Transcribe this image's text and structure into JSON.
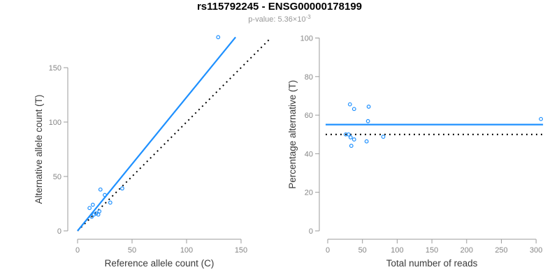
{
  "header": {
    "title": "rs115792245 - ENSG00000178199",
    "subtitle_prefix": "p-value: ",
    "subtitle_value": "5.36×10",
    "subtitle_exponent": "-3"
  },
  "colors": {
    "blue": "#1E90FF",
    "dotted": "#000000",
    "axis": "#9b9b9b",
    "tick_label": "#868686",
    "axis_title": "#3a3a3a",
    "title": "#000000",
    "subtitle": "#979797"
  },
  "chart_data": [
    {
      "id": "ref-vs-alt",
      "type": "scatter",
      "xlabel": "Reference allele count (C)",
      "ylabel": "Alternative allele count (T)",
      "xticks": [
        0,
        50,
        100,
        150
      ],
      "yticks": [
        0,
        50,
        100,
        150
      ],
      "xlim": [
        0,
        176
      ],
      "ylim": [
        0,
        178
      ],
      "points": [
        [
          11,
          21
        ],
        [
          14,
          24
        ],
        [
          21,
          38
        ],
        [
          25,
          33
        ],
        [
          13,
          13
        ],
        [
          15,
          15
        ],
        [
          17,
          16
        ],
        [
          20,
          18
        ],
        [
          30,
          26
        ],
        [
          19,
          15
        ],
        [
          41,
          39
        ],
        [
          129,
          178
        ]
      ],
      "fit_line": {
        "type": "through-origin",
        "slope": 1.228,
        "style": "solid",
        "color": "blue"
      },
      "identity_line": {
        "type": "y=x",
        "style": "dotted",
        "color": "black"
      },
      "legend": "none",
      "grid": false
    },
    {
      "id": "total-vs-percentage",
      "type": "scatter",
      "xlabel": "Total number of reads",
      "ylabel": "Percentage alternative (T)",
      "xticks": [
        0,
        50,
        100,
        150,
        200,
        250,
        300
      ],
      "yticks": [
        0,
        20,
        40,
        60,
        80,
        100
      ],
      "xlim": [
        0,
        310
      ],
      "ylim": [
        0,
        100
      ],
      "points": [
        [
          32,
          65.6
        ],
        [
          38,
          63.2
        ],
        [
          59,
          64.4
        ],
        [
          58,
          56.9
        ],
        [
          26,
          50
        ],
        [
          30,
          50
        ],
        [
          33,
          48.5
        ],
        [
          38,
          47.4
        ],
        [
          56,
          46.4
        ],
        [
          34,
          44.1
        ],
        [
          80,
          48.8
        ],
        [
          307,
          58
        ]
      ],
      "mean_line": {
        "value": 55.1,
        "style": "solid",
        "color": "blue"
      },
      "reference_line": {
        "value": 50,
        "style": "dotted",
        "color": "black"
      },
      "legend": "none",
      "grid": false
    }
  ]
}
